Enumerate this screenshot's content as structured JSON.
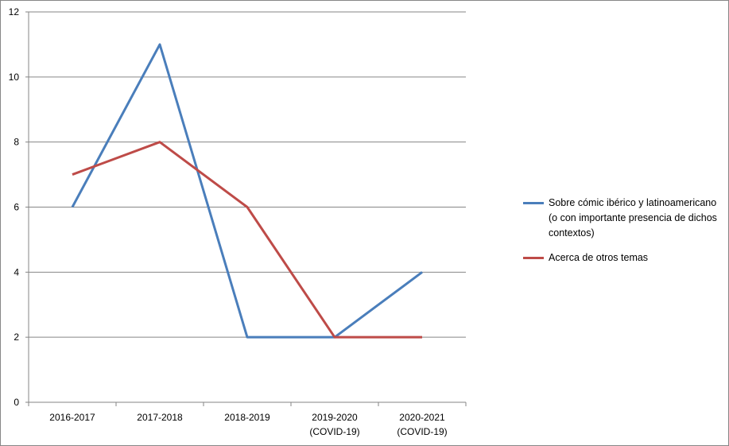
{
  "chart_data": {
    "type": "line",
    "categories": [
      [
        "2016-2017"
      ],
      [
        "2017-2018"
      ],
      [
        "2018-2019"
      ],
      [
        "2019-2020",
        "(COVID-19)"
      ],
      [
        "2020-2021",
        "(COVID-19)"
      ]
    ],
    "series": [
      {
        "name": "Sobre cómic ibérico y latinoamericano (o con importante presencia de dichos contextos)",
        "values": [
          6,
          11,
          2,
          2,
          4
        ],
        "color": "#4a7ebb"
      },
      {
        "name": "Acerca de otros temas",
        "values": [
          7,
          8,
          6,
          2,
          2
        ],
        "color": "#be4b48"
      }
    ],
    "ylim": [
      0,
      12
    ],
    "yticks": [
      0,
      2,
      4,
      6,
      8,
      10,
      12
    ],
    "grid": true,
    "legend_position": "right"
  }
}
